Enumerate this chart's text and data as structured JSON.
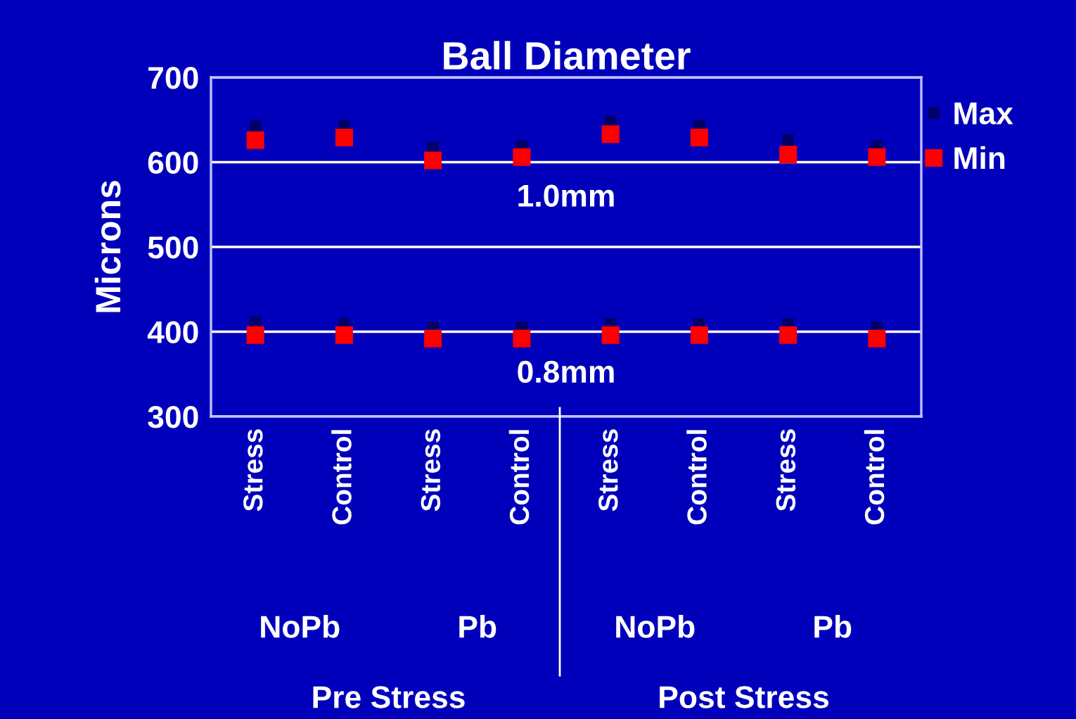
{
  "chart_data": {
    "type": "scatter",
    "title": "Ball Diameter",
    "ylabel": "Microns",
    "categories": [
      "Stress",
      "Control",
      "Stress",
      "Control",
      "Stress",
      "Control",
      "Stress",
      "Control"
    ],
    "series": [
      {
        "name": "Max",
        "color": "#000066",
        "values": [
          642,
          643,
          617,
          619,
          648,
          643,
          626,
          619
        ]
      },
      {
        "name": "Min",
        "color": "#ff0000",
        "values": [
          626,
          629,
          602,
          606,
          633,
          629,
          609,
          606
        ]
      },
      {
        "color": "#000066",
        "values": [
          411,
          409,
          405,
          405,
          409,
          409,
          409,
          405
        ]
      },
      {
        "color": "#ff0000",
        "values": [
          396,
          396,
          392,
          392,
          396,
          396,
          396,
          392
        ]
      }
    ],
    "ylim": [
      300,
      700
    ],
    "yticks": [
      300,
      400,
      500,
      600,
      700
    ],
    "grid": "y",
    "legend": "right",
    "marker": "square",
    "annotations": [
      "1.0mm",
      "0.8mm",
      "NoPb",
      "Pb",
      "NoPb",
      "Pb",
      "Pre Stress",
      "Post Stress"
    ]
  }
}
